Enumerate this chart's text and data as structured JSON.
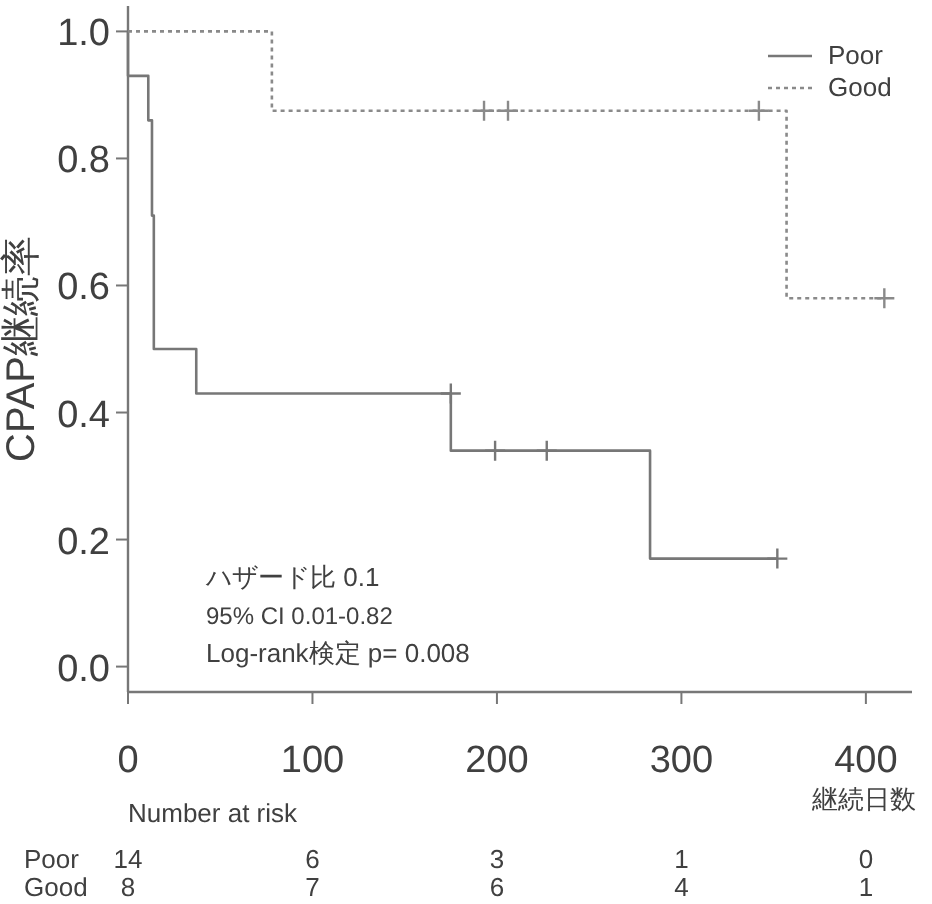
{
  "chart_data": {
    "type": "step",
    "xlabel": "継続日数",
    "ylabel": "CPAP継続率",
    "xlim": [
      0,
      425
    ],
    "ylim": [
      -0.04,
      1.04
    ],
    "xticks": [
      0,
      100,
      200,
      300,
      400
    ],
    "yticks": [
      {
        "value": 0,
        "label": "0.0"
      },
      {
        "value": 0.2,
        "label": "0.2"
      },
      {
        "value": 0.4,
        "label": "0.4"
      },
      {
        "value": 0.6,
        "label": "0.6"
      },
      {
        "value": 0.8,
        "label": "0.8"
      },
      {
        "value": 1,
        "label": "1.0"
      }
    ],
    "grid": false,
    "legend": "top right",
    "series": [
      {
        "name": "Poor",
        "type": "step",
        "color": "#777777",
        "line_style": "solid",
        "x": [
          0,
          0,
          11,
          13,
          14,
          37,
          175,
          283,
          352
        ],
        "values": [
          1,
          0.93,
          0.86,
          0.71,
          0.5,
          0.43,
          0.34,
          0.17,
          0.17
        ]
      },
      {
        "name": "Good",
        "type": "step",
        "color": "#8a8a8a",
        "line_style": "dotted",
        "x": [
          0,
          78,
          357,
          410
        ],
        "values": [
          1,
          0.875,
          0.58,
          0.58
        ]
      },
      {
        "type": "scatter",
        "marker": "cross",
        "color": "#777777",
        "x": [
          175,
          199,
          227,
          352
        ],
        "values": [
          0.43,
          0.34,
          0.34,
          0.17
        ]
      },
      {
        "type": "scatter",
        "marker": "cross",
        "color": "#8a8a8a",
        "x": [
          193,
          206,
          342,
          410
        ],
        "values": [
          0.875,
          0.875,
          0.875,
          0.58
        ]
      }
    ],
    "annotations": [
      "ハザード比  0.1",
      "95% CI 0.01-0.82",
      "Log-rank検定  p= 0.008",
      "Number at risk",
      "Poor",
      "14",
      "6",
      "3",
      "1",
      "0",
      "Good",
      "8",
      "7",
      "6",
      "4",
      "1"
    ]
  }
}
